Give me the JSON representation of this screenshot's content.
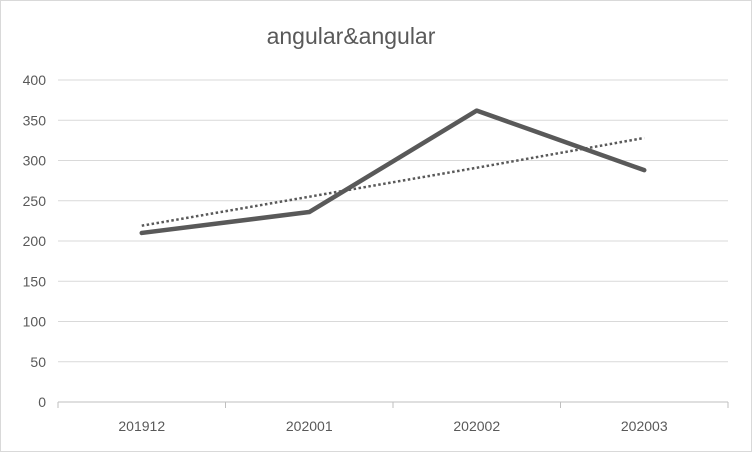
{
  "chart_data": {
    "type": "line",
    "title": "angular&angular",
    "categories": [
      "201912",
      "202001",
      "202002",
      "202003"
    ],
    "series": [
      {
        "values": [
          210,
          236,
          362,
          288
        ],
        "color": "#595959",
        "style": "solid"
      },
      {
        "values": [
          219,
          255,
          291,
          328
        ],
        "color": "#595959",
        "style": "dotted",
        "trendline": true
      }
    ],
    "yticks": [
      0,
      50,
      100,
      150,
      200,
      250,
      300,
      350,
      400
    ],
    "ylim": [
      0,
      400
    ],
    "grid": true,
    "legend": "none"
  }
}
